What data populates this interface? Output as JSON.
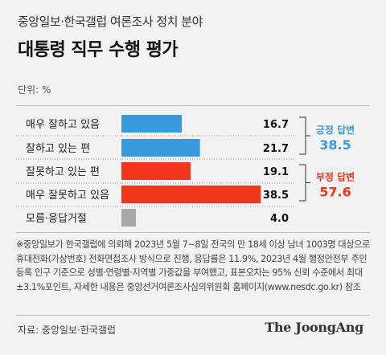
{
  "header": {
    "subtitle": "중앙일보·한국갤럽 여론조사 정치 분야",
    "title": "대통령 직무 수행 평가",
    "unit": "단위: %"
  },
  "chart_data": {
    "type": "bar",
    "orientation": "horizontal",
    "categories": [
      "매우 잘하고 있음",
      "잘하고 있는 편",
      "잘못하고 있는 편",
      "매우 잘못하고 있음",
      "모름·응답거절"
    ],
    "values": [
      16.7,
      21.7,
      19.1,
      38.5,
      4.0
    ],
    "value_labels": [
      "16.7",
      "21.7",
      "19.1",
      "38.5",
      "4.0"
    ],
    "bar_colors": [
      "#3a9bdc",
      "#3a9bdc",
      "#f2361b",
      "#f2361b",
      "#a9a9a9"
    ],
    "groups": [
      {
        "label": "긍정 답변",
        "value": "38.5",
        "color": "#3a9bdc",
        "rows": [
          0,
          1
        ]
      },
      {
        "label": "부정 답변",
        "value": "57.6",
        "color": "#f2361b",
        "rows": [
          2,
          3
        ]
      }
    ],
    "grid": false
  },
  "footnote": "※중앙일보가 한국갤럽에 의뢰해 2023년 5월 7~8일 전국의 만 18세 이상 남녀 1003명 대상으로 휴대전화(가상번호) 전화면접조사 방식으로 진행, 응답률은 11.9%, 2023년 4월 행정안전부 주민등록 인구 기준으로 성별·연령별·지역별 가중값을 부여했고, 표본오차는 95% 신뢰 수준에서 최대 ±3.1%포인트, 자세한 내용은 중앙선거여론조사심의위원회 홈페이지(www.nesdc.go.kr) 참조",
  "source": "자료: 중앙일보·한국갤럽",
  "brand": "The JoongAng"
}
